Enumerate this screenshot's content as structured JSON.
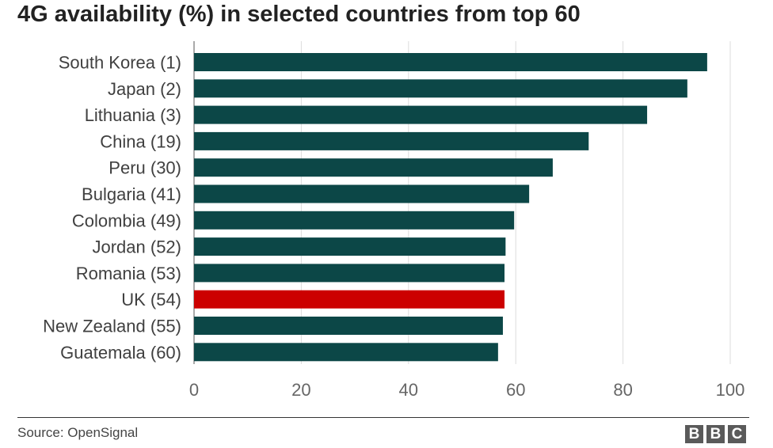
{
  "chart_data": {
    "type": "bar",
    "orientation": "horizontal",
    "title": "4G availability (%) in selected countries from top 60",
    "categories": [
      "South Korea (1)",
      "Japan (2)",
      "Lithuania (3)",
      "China (19)",
      "Peru (30)",
      "Bulgaria (41)",
      "Colombia (49)",
      "Jordan (52)",
      "Romania (53)",
      "UK (54)",
      "New Zealand (55)",
      "Guatemala (60)"
    ],
    "values": [
      95.7,
      92.0,
      84.5,
      73.6,
      66.9,
      62.5,
      59.7,
      58.1,
      57.9,
      57.9,
      57.6,
      56.7
    ],
    "highlight_index": 9,
    "bar_color": "#0c4747",
    "highlight_color": "#cc0000",
    "xlim": [
      0,
      100
    ],
    "xticks": [
      0,
      20,
      40,
      60,
      80,
      100
    ],
    "xlabel": "",
    "ylabel": "",
    "grid": "vertical"
  },
  "footer": {
    "source": "Source: OpenSignal",
    "logo_letters": [
      "B",
      "B",
      "C"
    ]
  }
}
